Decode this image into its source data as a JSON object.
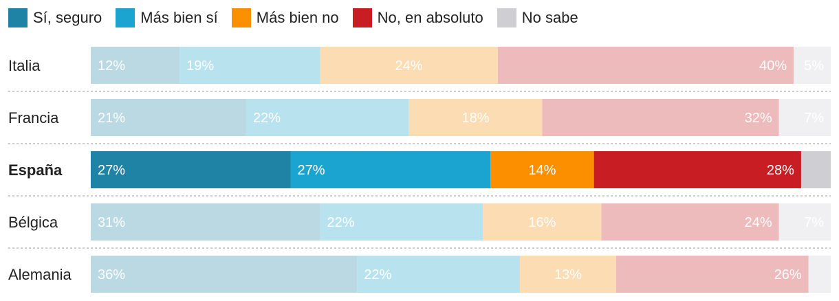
{
  "chart_data": {
    "type": "bar",
    "orientation": "horizontal",
    "stacked": true,
    "title": "",
    "xlabel": "",
    "ylabel": "",
    "xlim": [
      0,
      100
    ],
    "legend": "top",
    "categories": [
      "Italia",
      "Francia",
      "España",
      "Bélgica",
      "Alemania"
    ],
    "highlight": "España",
    "series": [
      {
        "name": "Sí, seguro",
        "color": "#1f83a5",
        "muted_color": "#bbd9e3",
        "values": [
          12,
          21,
          27,
          31,
          36
        ],
        "label_position": "left"
      },
      {
        "name": "Más bien sí",
        "color": "#1ba4d0",
        "muted_color": "#b9e2ef",
        "values": [
          19,
          22,
          27,
          22,
          22
        ],
        "label_position": "left"
      },
      {
        "name": "Más bien no",
        "color": "#fc8f00",
        "muted_color": "#fcdcb3",
        "values": [
          24,
          18,
          14,
          16,
          13
        ],
        "label_position": "center"
      },
      {
        "name": "No, en absoluto",
        "color": "#c81d22",
        "muted_color": "#eebbbc",
        "values": [
          40,
          32,
          28,
          24,
          26
        ],
        "label_position": "right"
      },
      {
        "name": "No sabe",
        "color": "#cfced3",
        "muted_color": "#f0f0f2",
        "values": [
          5,
          7,
          4,
          7,
          3
        ],
        "label_position": "right"
      }
    ],
    "labels": [
      [
        "12%",
        "19%",
        "24%",
        "40%",
        "5%"
      ],
      [
        "21%",
        "22%",
        "18%",
        "32%",
        "7%"
      ],
      [
        "27%",
        "27%",
        "14%",
        "28%",
        ""
      ],
      [
        "31%",
        "22%",
        "16%",
        "24%",
        "7%"
      ],
      [
        "36%",
        "22%",
        "13%",
        "26%",
        ""
      ]
    ]
  }
}
